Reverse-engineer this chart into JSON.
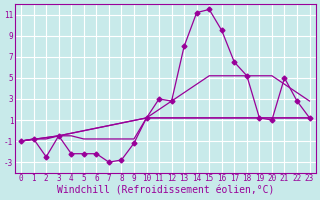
{
  "background_color": "#c8eaea",
  "grid_color": "#ffffff",
  "line_color": "#990099",
  "xlabel": "Windchill (Refroidissement éolien,°C)",
  "xlabel_fontsize": 7,
  "yticks": [
    -3,
    -1,
    1,
    3,
    5,
    7,
    9,
    11
  ],
  "xticks": [
    0,
    1,
    2,
    3,
    4,
    5,
    6,
    7,
    8,
    9,
    10,
    11,
    12,
    13,
    14,
    15,
    16,
    17,
    18,
    19,
    20,
    21,
    22,
    23
  ],
  "xlim": [
    -0.5,
    23.5
  ],
  "ylim": [
    -4,
    12
  ],
  "lines": [
    {
      "x": [
        0,
        1,
        2,
        3,
        4,
        5,
        6,
        7,
        8,
        9,
        10,
        11,
        12,
        13,
        14,
        15,
        16,
        17,
        18,
        19,
        20,
        21,
        22,
        23
      ],
      "y": [
        -1.0,
        -0.8,
        -2.5,
        -0.5,
        -2.2,
        -2.2,
        -2.2,
        -3.0,
        -2.8,
        -1.2,
        1.2,
        3.0,
        2.8,
        8.0,
        11.2,
        11.5,
        9.5,
        6.5,
        5.2,
        1.2,
        1.0,
        5.0,
        2.8,
        1.2
      ],
      "marker": true
    },
    {
      "x": [
        0,
        1,
        2,
        3,
        4,
        5,
        6,
        7,
        8,
        9,
        10,
        11,
        12,
        13,
        14,
        15,
        16,
        17,
        18,
        19,
        20,
        21,
        22,
        23
      ],
      "y": [
        -1.0,
        -0.8,
        -0.8,
        -0.5,
        -0.5,
        -0.8,
        -0.8,
        -0.8,
        -0.8,
        -0.8,
        1.2,
        1.2,
        1.2,
        1.2,
        1.2,
        1.2,
        1.2,
        1.2,
        1.2,
        1.2,
        1.2,
        1.2,
        1.2,
        1.2
      ],
      "marker": false
    },
    {
      "x": [
        0,
        3,
        10,
        15,
        18,
        20,
        23
      ],
      "y": [
        -1.0,
        -0.5,
        1.2,
        1.2,
        1.2,
        1.2,
        1.2
      ],
      "marker": false
    },
    {
      "x": [
        0,
        3,
        10,
        15,
        20,
        23
      ],
      "y": [
        -1.0,
        -0.5,
        1.2,
        5.2,
        5.2,
        2.8
      ],
      "marker": false
    }
  ]
}
